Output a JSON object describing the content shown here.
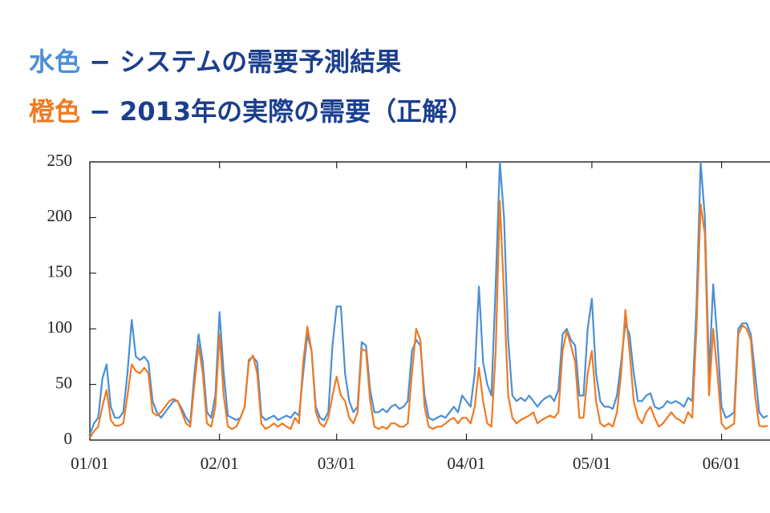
{
  "chart_data": {
    "type": "line",
    "series": [
      {
        "name": "水色",
        "description": "− システムの需要予測結果",
        "color": "#4a8fd6",
        "values": [
          5,
          15,
          20,
          55,
          68,
          30,
          20,
          20,
          25,
          60,
          108,
          75,
          72,
          75,
          70,
          35,
          25,
          20,
          25,
          30,
          35,
          35,
          28,
          20,
          15,
          60,
          95,
          70,
          25,
          20,
          40,
          115,
          60,
          22,
          20,
          18,
          20,
          30,
          72,
          75,
          70,
          22,
          18,
          20,
          22,
          18,
          20,
          22,
          20,
          25,
          22,
          60,
          95,
          80,
          30,
          20,
          18,
          25,
          85,
          120,
          120,
          60,
          35,
          25,
          30,
          88,
          85,
          45,
          25,
          25,
          28,
          25,
          30,
          32,
          28,
          30,
          35,
          80,
          90,
          85,
          40,
          20,
          18,
          20,
          22,
          20,
          25,
          30,
          25,
          40,
          35,
          30,
          60,
          138,
          70,
          50,
          40,
          140,
          250,
          200,
          90,
          40,
          35,
          38,
          35,
          40,
          35,
          30,
          35,
          38,
          40,
          35,
          45,
          95,
          100,
          90,
          85,
          40,
          40,
          100,
          127,
          60,
          35,
          30,
          30,
          28,
          40,
          70,
          105,
          95,
          60,
          35,
          35,
          40,
          42,
          30,
          28,
          30,
          35,
          33,
          35,
          33,
          30,
          38,
          35,
          120,
          250,
          200,
          60,
          140,
          90,
          30,
          20,
          22,
          25,
          100,
          105,
          105,
          95,
          60,
          25,
          20,
          22
        ]
      },
      {
        "name": "橙色",
        "description": "− 2013年の実際の需要（正解）",
        "color": "#f07a22",
        "values": [
          2,
          8,
          12,
          30,
          45,
          18,
          13,
          13,
          15,
          40,
          68,
          62,
          60,
          65,
          60,
          25,
          22,
          25,
          30,
          35,
          37,
          35,
          25,
          15,
          12,
          50,
          85,
          60,
          15,
          12,
          30,
          95,
          40,
          12,
          10,
          12,
          20,
          30,
          70,
          76,
          60,
          15,
          10,
          12,
          15,
          12,
          15,
          12,
          10,
          20,
          15,
          70,
          102,
          80,
          25,
          15,
          12,
          20,
          40,
          57,
          40,
          35,
          20,
          15,
          25,
          82,
          80,
          35,
          12,
          10,
          12,
          10,
          15,
          15,
          12,
          12,
          15,
          60,
          100,
          90,
          30,
          12,
          10,
          12,
          12,
          15,
          18,
          20,
          15,
          20,
          20,
          15,
          30,
          65,
          35,
          15,
          12,
          80,
          215,
          130,
          40,
          20,
          15,
          18,
          20,
          22,
          25,
          15,
          18,
          20,
          22,
          20,
          25,
          80,
          98,
          85,
          70,
          20,
          20,
          60,
          80,
          35,
          15,
          12,
          15,
          12,
          25,
          60,
          117,
          80,
          35,
          20,
          15,
          25,
          30,
          20,
          12,
          15,
          20,
          25,
          20,
          18,
          15,
          25,
          20,
          100,
          212,
          185,
          40,
          100,
          60,
          15,
          10,
          12,
          15,
          95,
          103,
          100,
          90,
          40,
          13,
          12,
          13
        ]
      }
    ],
    "x": [
      0,
      1,
      2,
      3,
      4,
      5,
      6,
      7,
      8,
      9,
      10,
      11,
      12,
      13,
      14,
      15,
      16,
      17,
      18,
      19,
      20,
      21,
      22,
      23,
      24,
      25,
      26,
      27,
      28,
      29,
      30,
      31,
      32,
      33,
      34,
      35,
      36,
      37,
      38,
      39,
      40,
      41,
      42,
      43,
      44,
      45,
      46,
      47,
      48,
      49,
      50,
      51,
      52,
      53,
      54,
      55,
      56,
      57,
      58,
      59,
      60,
      61,
      62,
      63,
      64,
      65,
      66,
      67,
      68,
      69,
      70,
      71,
      72,
      73,
      74,
      75,
      76,
      77,
      78,
      79,
      80,
      81,
      82,
      83,
      84,
      85,
      86,
      87,
      88,
      89,
      90,
      91,
      92,
      93,
      94,
      95,
      96,
      97,
      98,
      99,
      100,
      101,
      102,
      103,
      104,
      105,
      106,
      107,
      108,
      109,
      110,
      111,
      112,
      113,
      114,
      115,
      116,
      117,
      118,
      119,
      120,
      121,
      122,
      123,
      124,
      125,
      126,
      127,
      128,
      129,
      130,
      131,
      132,
      133,
      134,
      135,
      136,
      137,
      138,
      139,
      140,
      141,
      142,
      143,
      144,
      145,
      146,
      147,
      148,
      149,
      150,
      151,
      152,
      153,
      154,
      155,
      156,
      157,
      158,
      159,
      160,
      161,
      162
    ],
    "xlim": [
      0,
      162
    ],
    "xticks": [
      {
        "value": 0,
        "label": "01/01"
      },
      {
        "value": 31,
        "label": "02/01"
      },
      {
        "value": 59,
        "label": "03/01"
      },
      {
        "value": 90,
        "label": "04/01"
      },
      {
        "value": 120,
        "label": "05/01"
      },
      {
        "value": 151,
        "label": "06/01"
      }
    ],
    "ylim": [
      0,
      250
    ],
    "yticks": [
      0,
      50,
      100,
      150,
      200,
      250
    ]
  }
}
